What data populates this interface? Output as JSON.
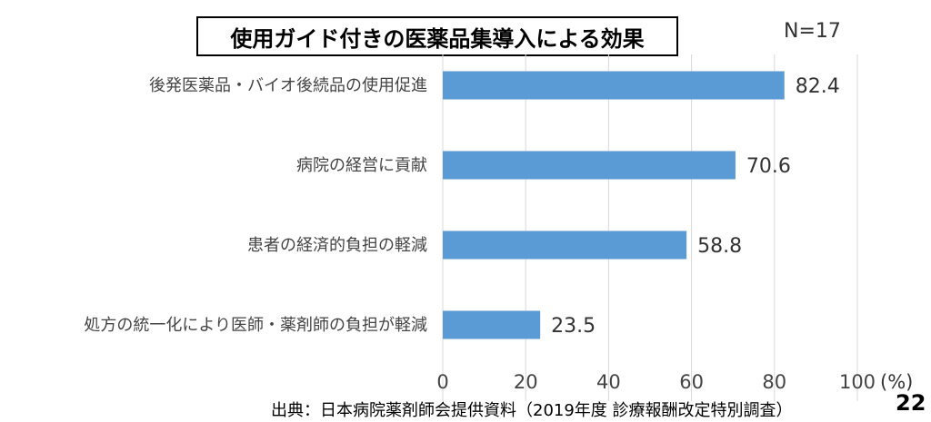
{
  "chart_data": {
    "type": "bar",
    "orientation": "horizontal",
    "title": "使用ガイド付きの医薬品集導入による効果",
    "sample_size": "N=17",
    "categories": [
      "後発医薬品・バイオ後続品の使用促進",
      "病院の経営に貢献",
      "患者の経済的負担の軽減",
      "処方の統一化により医師・薬剤師の負担が軽減"
    ],
    "values": [
      82.4,
      70.6,
      58.8,
      23.5
    ],
    "value_labels": [
      "82.4",
      "70.6",
      "58.8",
      "23.5"
    ],
    "xlim": [
      0,
      100
    ],
    "xticks": [
      "0",
      "20",
      "40",
      "60",
      "80",
      "100"
    ],
    "x_unit": "(%)",
    "grid": "vertical",
    "bar_color": "#5B9BD5",
    "grid_color": "#D9D9D9"
  },
  "footer": {
    "source": "出典：日本病院薬剤師会提供資料（2019年度  診療報酬改定特別調査）",
    "page_number": "22"
  }
}
